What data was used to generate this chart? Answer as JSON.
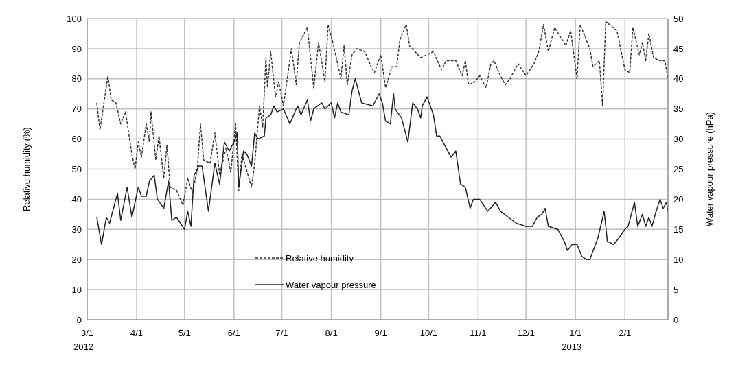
{
  "chart_data": {
    "type": "line",
    "ylabel": "Relative humidity (%)",
    "y2label": "Water vapour pressure (hPa)",
    "xlim": [
      "2012-03-01",
      "2013-02-28"
    ],
    "xticks": [
      {
        "value": "2012-03-01",
        "label": "3/1\n2012"
      },
      {
        "value": "2012-04-01",
        "label": "4/1"
      },
      {
        "value": "2012-05-01",
        "label": "5/1"
      },
      {
        "value": "2012-06-01",
        "label": "6/1"
      },
      {
        "value": "2012-07-01",
        "label": "7/1"
      },
      {
        "value": "2012-08-01",
        "label": "8/1"
      },
      {
        "value": "2012-09-01",
        "label": "9/1"
      },
      {
        "value": "2012-10-01",
        "label": "10/1"
      },
      {
        "value": "2012-11-01",
        "label": "11/1"
      },
      {
        "value": "2012-12-01",
        "label": "12/1"
      },
      {
        "value": "2013-01-01",
        "label": "1/1\n2013"
      },
      {
        "value": "2013-02-01",
        "label": "2/1"
      }
    ],
    "ylim": [
      0,
      100
    ],
    "yticks": [
      0,
      10,
      20,
      30,
      40,
      50,
      60,
      70,
      80,
      90,
      100
    ],
    "y2lim": [
      0,
      50
    ],
    "y2ticks": [
      0,
      5,
      10,
      15,
      20,
      25,
      30,
      35,
      40,
      45,
      50
    ],
    "grid": true,
    "legend": "bottom",
    "marker": "none",
    "series": [
      {
        "name": "Relative humidity",
        "color": "#333333",
        "line_style": "dashed",
        "x": [
          "2012-03-07",
          "2012-03-09",
          "2012-03-14",
          "2012-03-16",
          "2012-03-19",
          "2012-03-22",
          "2012-03-25",
          "2012-03-29",
          "2012-03-31",
          "2012-04-02",
          "2012-04-04",
          "2012-04-07",
          "2012-04-09",
          "2012-04-10",
          "2012-04-13",
          "2012-04-15",
          "2012-04-18",
          "2012-04-20",
          "2012-04-22",
          "2012-04-26",
          "2012-04-30",
          "2012-05-03",
          "2012-05-06",
          "2012-05-09",
          "2012-05-11",
          "2012-05-13",
          "2012-05-17",
          "2012-05-20",
          "2012-05-23",
          "2012-05-27",
          "2012-05-30",
          "2012-06-02",
          "2012-06-04",
          "2012-06-06",
          "2012-06-12",
          "2012-06-14",
          "2012-06-17",
          "2012-06-19",
          "2012-06-21",
          "2012-06-22",
          "2012-06-24",
          "2012-06-27",
          "2012-06-29",
          "2012-07-02",
          "2012-07-07",
          "2012-07-10",
          "2012-07-12",
          "2012-07-17",
          "2012-07-21",
          "2012-07-24",
          "2012-07-28",
          "2012-07-30",
          "2012-08-02",
          "2012-08-07",
          "2012-08-09",
          "2012-08-11",
          "2012-08-14",
          "2012-08-17",
          "2012-08-22",
          "2012-08-26",
          "2012-08-28",
          "2012-09-01",
          "2012-09-04",
          "2012-09-08",
          "2012-09-11",
          "2012-09-13",
          "2012-09-17",
          "2012-09-19",
          "2012-09-26",
          "2012-10-04",
          "2012-10-09",
          "2012-10-12",
          "2012-10-18",
          "2012-10-22",
          "2012-10-24",
          "2012-10-26",
          "2012-10-30",
          "2012-11-02",
          "2012-11-06",
          "2012-11-09",
          "2012-11-11",
          "2012-11-14",
          "2012-11-18",
          "2012-11-21",
          "2012-11-26",
          "2012-12-01",
          "2012-12-06",
          "2012-12-09",
          "2012-12-12",
          "2012-12-15",
          "2012-12-19",
          "2012-12-26",
          "2012-12-29",
          "2013-01-02",
          "2013-01-04",
          "2013-01-10",
          "2013-01-12",
          "2013-01-16",
          "2013-01-18",
          "2013-01-20",
          "2013-01-27",
          "2013-02-01",
          "2013-02-04",
          "2013-02-06",
          "2013-02-10",
          "2013-02-12",
          "2013-02-14",
          "2013-02-16",
          "2013-02-19",
          "2013-02-23",
          "2013-02-26",
          "2013-02-28"
        ],
        "values": [
          72,
          63,
          81,
          73,
          72,
          65,
          69,
          55,
          50,
          59,
          54,
          65,
          59,
          69,
          53,
          61,
          47,
          58,
          44,
          43,
          38,
          47,
          42,
          50,
          65,
          53,
          52,
          62,
          48,
          57,
          49,
          65,
          43,
          55,
          44,
          52,
          71,
          64,
          87,
          77,
          89,
          74,
          79,
          71,
          90,
          78,
          92,
          97,
          77,
          92,
          79,
          98,
          92,
          80,
          91,
          78,
          88,
          90,
          89,
          84,
          82,
          88,
          77,
          84,
          84,
          93,
          98,
          91,
          87,
          89,
          83,
          86,
          86,
          81,
          86,
          78,
          79,
          81,
          77,
          85,
          86,
          82,
          78,
          80,
          85,
          81,
          85,
          89,
          98,
          89,
          97,
          91,
          96,
          80,
          98,
          90,
          84,
          86,
          71,
          99,
          96,
          83,
          82,
          97,
          88,
          92,
          86,
          95,
          87,
          86,
          86,
          80
        ]
      },
      {
        "name": "Water vapour pressure",
        "color": "#222222",
        "line_style": "solid",
        "axis": "y2",
        "x": [
          "2012-03-07",
          "2012-03-10",
          "2012-03-13",
          "2012-03-15",
          "2012-03-20",
          "2012-03-22",
          "2012-03-26",
          "2012-03-29",
          "2012-04-02",
          "2012-04-04",
          "2012-04-07",
          "2012-04-09",
          "2012-04-12",
          "2012-04-14",
          "2012-04-18",
          "2012-04-21",
          "2012-04-23",
          "2012-04-26",
          "2012-05-01",
          "2012-05-03",
          "2012-05-05",
          "2012-05-07",
          "2012-05-10",
          "2012-05-12",
          "2012-05-16",
          "2012-05-20",
          "2012-05-23",
          "2012-05-26",
          "2012-05-29",
          "2012-06-01",
          "2012-06-03",
          "2012-06-04",
          "2012-06-07",
          "2012-06-09",
          "2012-06-12",
          "2012-06-14",
          "2012-06-16",
          "2012-06-20",
          "2012-06-21",
          "2012-06-24",
          "2012-06-26",
          "2012-06-28",
          "2012-07-02",
          "2012-07-06",
          "2012-07-10",
          "2012-07-11",
          "2012-07-13",
          "2012-07-17",
          "2012-07-19",
          "2012-07-21",
          "2012-07-26",
          "2012-07-28",
          "2012-08-01",
          "2012-08-03",
          "2012-08-05",
          "2012-08-07",
          "2012-08-12",
          "2012-08-14",
          "2012-08-16",
          "2012-08-20",
          "2012-08-27",
          "2012-08-31",
          "2012-09-02",
          "2012-09-04",
          "2012-09-07",
          "2012-09-09",
          "2012-09-10",
          "2012-09-14",
          "2012-09-18",
          "2012-09-21",
          "2012-09-24",
          "2012-09-26",
          "2012-09-27",
          "2012-09-30",
          "2012-10-04",
          "2012-10-06",
          "2012-10-08",
          "2012-10-11",
          "2012-10-15",
          "2012-10-18",
          "2012-10-21",
          "2012-10-24",
          "2012-10-27",
          "2012-10-29",
          "2012-11-02",
          "2012-11-07",
          "2012-11-12",
          "2012-11-15",
          "2012-11-20",
          "2012-11-25",
          "2012-12-01",
          "2012-12-05",
          "2012-12-08",
          "2012-12-11",
          "2012-12-13",
          "2012-12-15",
          "2012-12-21",
          "2012-12-25",
          "2012-12-27",
          "2012-12-30",
          "2013-01-02",
          "2013-01-05",
          "2013-01-08",
          "2013-01-10",
          "2013-01-15",
          "2013-01-19",
          "2013-01-21",
          "2013-01-25",
          "2013-01-28",
          "2013-02-01",
          "2013-02-03",
          "2013-02-07",
          "2013-02-09",
          "2013-02-12",
          "2013-02-14",
          "2013-02-16",
          "2013-02-18",
          "2013-02-20",
          "2013-02-23",
          "2013-02-25",
          "2013-02-27",
          "2013-02-28"
        ],
        "values": [
          17,
          12.5,
          17,
          16,
          21,
          16.5,
          22,
          17,
          22,
          20.5,
          20.5,
          23,
          24,
          20,
          18.5,
          23,
          16.5,
          17,
          15,
          18,
          15.5,
          24,
          25.5,
          25.5,
          18,
          26,
          22.5,
          29.5,
          28,
          29.5,
          31,
          22,
          28,
          27.5,
          25.5,
          31,
          30,
          30.5,
          33.5,
          34,
          35.5,
          34.5,
          35,
          32.5,
          35,
          35.5,
          34,
          36.5,
          33,
          35,
          36,
          35,
          36,
          33.5,
          36,
          34.5,
          34,
          38,
          40,
          36,
          35.5,
          37.5,
          36,
          33,
          32.5,
          37.5,
          35,
          33.5,
          29.5,
          36,
          35,
          33.5,
          35.5,
          37,
          34,
          30.5,
          30.5,
          29,
          27,
          28,
          22.5,
          22,
          18.5,
          20,
          20,
          18,
          19.5,
          18,
          17,
          16,
          15.5,
          15.5,
          17,
          17.5,
          18.5,
          15.5,
          15,
          13,
          11.5,
          12.5,
          12.5,
          10.5,
          10,
          10,
          13.5,
          18,
          13,
          12.5,
          13.5,
          15,
          15.5,
          19.5,
          15.5,
          17.5,
          15.5,
          17,
          15.5,
          17.5,
          20,
          18.5,
          19.5,
          18
        ]
      }
    ]
  }
}
